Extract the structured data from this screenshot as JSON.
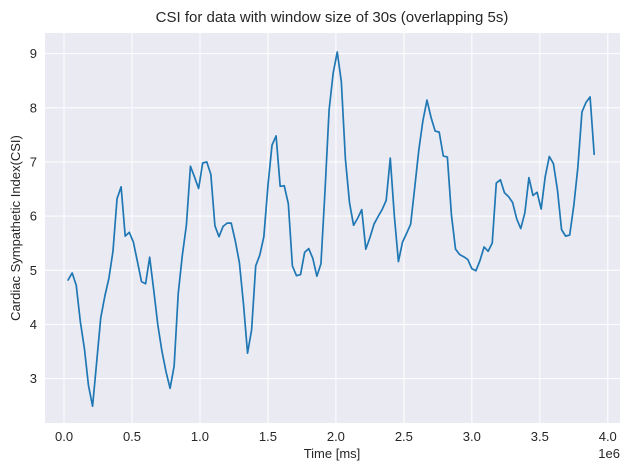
{
  "chart_data": {
    "type": "line",
    "title": "CSI for data with window size of 30s (overlapping 5s)",
    "xlabel": "Time [ms]",
    "ylabel": "Cardiac Sympathetic Index(CSI)",
    "x_offset_label": "1e6",
    "xlim": [
      -140000,
      4090000
    ],
    "ylim": [
      2.18,
      9.38
    ],
    "x_ticks": [
      0.0,
      0.5,
      1.0,
      1.5,
      2.0,
      2.5,
      3.0,
      3.5,
      4.0
    ],
    "x_tick_labels": [
      "0.0",
      "0.5",
      "1.0",
      "1.5",
      "2.0",
      "2.5",
      "3.0",
      "3.5",
      "4.0"
    ],
    "y_ticks": [
      3,
      4,
      5,
      6,
      7,
      8,
      9
    ],
    "y_tick_labels": [
      "3",
      "4",
      "5",
      "6",
      "7",
      "8",
      "9"
    ],
    "grid": true,
    "background": "#eaeaf2",
    "grid_color": "#ffffff",
    "line_color": "#1f77b4",
    "series": [
      {
        "name": "",
        "x": [
          30000,
          60000,
          90000,
          120000,
          150000,
          180000,
          210000,
          240000,
          270000,
          300000,
          330000,
          360000,
          390000,
          420000,
          450000,
          480000,
          510000,
          540000,
          570000,
          600000,
          630000,
          660000,
          690000,
          720000,
          750000,
          780000,
          810000,
          840000,
          870000,
          900000,
          930000,
          960000,
          990000,
          1020000,
          1050000,
          1080000,
          1110000,
          1140000,
          1170000,
          1200000,
          1230000,
          1260000,
          1290000,
          1320000,
          1350000,
          1380000,
          1410000,
          1440000,
          1470000,
          1500000,
          1530000,
          1560000,
          1590000,
          1620000,
          1650000,
          1680000,
          1710000,
          1740000,
          1770000,
          1800000,
          1830000,
          1860000,
          1890000,
          1920000,
          1950000,
          1980000,
          2010000,
          2040000,
          2070000,
          2100000,
          2130000,
          2160000,
          2190000,
          2220000,
          2250000,
          2280000,
          2310000,
          2340000,
          2370000,
          2400000,
          2430000,
          2460000,
          2490000,
          2520000,
          2550000,
          2580000,
          2610000,
          2640000,
          2670000,
          2700000,
          2730000,
          2760000,
          2790000,
          2820000,
          2850000,
          2880000,
          2910000,
          2940000,
          2970000,
          3000000,
          3030000,
          3060000,
          3090000,
          3120000,
          3150000,
          3180000,
          3210000,
          3240000,
          3270000,
          3300000,
          3330000,
          3360000,
          3390000,
          3420000,
          3450000,
          3480000,
          3510000,
          3540000,
          3570000,
          3600000,
          3630000,
          3660000,
          3690000,
          3720000,
          3750000,
          3780000,
          3810000,
          3840000,
          3870000,
          3900000
        ],
        "y": [
          4.82,
          4.95,
          4.72,
          4.05,
          3.55,
          2.87,
          2.49,
          3.3,
          4.12,
          4.52,
          4.85,
          5.35,
          6.32,
          6.54,
          5.63,
          5.7,
          5.52,
          5.16,
          4.79,
          4.75,
          5.24,
          4.63,
          3.99,
          3.51,
          3.13,
          2.82,
          3.23,
          4.57,
          5.27,
          5.83,
          6.92,
          6.72,
          6.51,
          6.98,
          7.0,
          6.77,
          5.82,
          5.62,
          5.81,
          5.87,
          5.87,
          5.54,
          5.14,
          4.38,
          3.47,
          3.9,
          5.08,
          5.28,
          5.62,
          6.56,
          7.31,
          7.48,
          6.55,
          6.56,
          6.23,
          5.08,
          4.9,
          4.92,
          5.33,
          5.4,
          5.22,
          4.89,
          5.12,
          6.47,
          7.96,
          8.64,
          9.03,
          8.48,
          7.05,
          6.25,
          5.83,
          5.96,
          6.12,
          5.39,
          5.6,
          5.85,
          5.99,
          6.12,
          6.29,
          7.07,
          6.0,
          5.16,
          5.52,
          5.68,
          5.85,
          6.53,
          7.22,
          7.76,
          8.14,
          7.82,
          7.57,
          7.55,
          7.11,
          7.09,
          6.02,
          5.39,
          5.29,
          5.25,
          5.2,
          5.03,
          4.99,
          5.18,
          5.43,
          5.35,
          5.5,
          6.61,
          6.67,
          6.43,
          6.36,
          6.25,
          5.95,
          5.77,
          6.06,
          6.71,
          6.38,
          6.44,
          6.13,
          6.73,
          7.1,
          6.97,
          6.48,
          5.75,
          5.63,
          5.65,
          6.19,
          6.9,
          7.92,
          8.1,
          8.2,
          7.14
        ]
      }
    ]
  }
}
